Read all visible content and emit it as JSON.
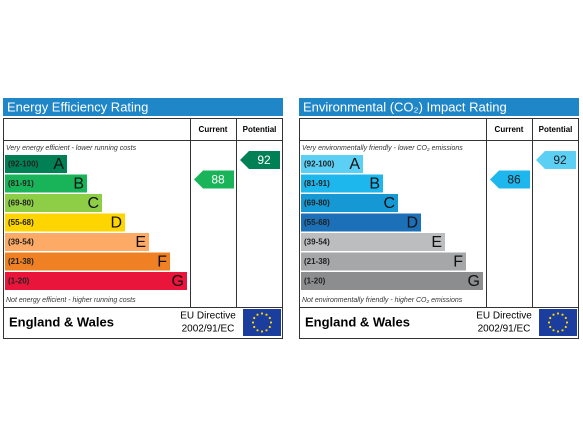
{
  "panels": [
    {
      "title": "Energy Efficiency Rating",
      "current_header": "Current",
      "potential_header": "Potential",
      "top_note": "Very energy efficient - lower running costs",
      "bottom_note": "Not energy efficient - higher running costs",
      "bands": [
        {
          "range": "(92-100)",
          "letter": "A",
          "color": "#008054"
        },
        {
          "range": "(81-91)",
          "letter": "B",
          "color": "#19b459"
        },
        {
          "range": "(69-80)",
          "letter": "C",
          "color": "#8dce46"
        },
        {
          "range": "(55-68)",
          "letter": "D",
          "color": "#ffd500"
        },
        {
          "range": "(39-54)",
          "letter": "E",
          "color": "#fcaa65"
        },
        {
          "range": "(21-38)",
          "letter": "F",
          "color": "#ef8023"
        },
        {
          "range": "(1-20)",
          "letter": "G",
          "color": "#e9153b"
        }
      ],
      "current": 88,
      "potential": 92,
      "region": "England & Wales",
      "directive": [
        "EU Directive",
        "2002/91/EC"
      ]
    },
    {
      "title": "Environmental (CO₂) Impact Rating",
      "current_header": "Current",
      "potential_header": "Potential",
      "top_note": "Very environmentally friendly - lower CO₂ emissions",
      "bottom_note": "Not environmentally friendly - higher CO₂ emissions",
      "bands": [
        {
          "range": "(92-100)",
          "letter": "A",
          "color": "#5ccff4"
        },
        {
          "range": "(81-91)",
          "letter": "B",
          "color": "#1db7ee"
        },
        {
          "range": "(69-80)",
          "letter": "C",
          "color": "#1598d3"
        },
        {
          "range": "(55-68)",
          "letter": "D",
          "color": "#1b70b7"
        },
        {
          "range": "(39-54)",
          "letter": "E",
          "color": "#bbbdbf"
        },
        {
          "range": "(21-38)",
          "letter": "F",
          "color": "#a5a7a9"
        },
        {
          "range": "(1-20)",
          "letter": "G",
          "color": "#8b8d8f"
        }
      ],
      "current": 86,
      "potential": 92,
      "region": "England & Wales",
      "directive": [
        "EU Directive",
        "2002/91/EC"
      ]
    }
  ]
}
